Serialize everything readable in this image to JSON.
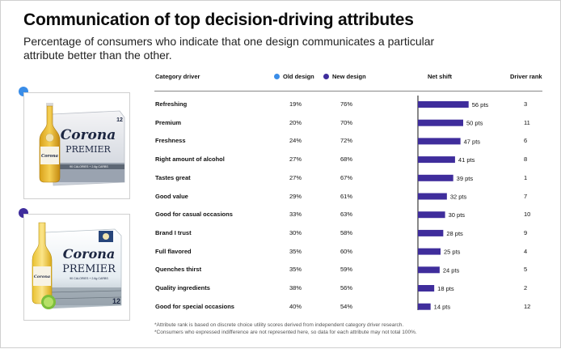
{
  "header": {
    "title": "Communication of top decision-driving attributes",
    "subtitle": "Percentage of consumers who indicate that one design communicates a particular attribute better than the other."
  },
  "columns": {
    "category": "Category driver",
    "old": "Old design",
    "new": "New design",
    "net": "Net shift",
    "rank": "Driver rank"
  },
  "colors": {
    "old": "#3a8de8",
    "new": "#3f2d9c",
    "bar": "#3f2d9c"
  },
  "packs": {
    "old": {
      "brand": "Corona",
      "sub": "PREMIER",
      "count": "12",
      "fineprint": "90 CALORIES + 2.6g CARBS"
    },
    "new": {
      "brand": "Corona",
      "sub": "PREMIER",
      "count": "12",
      "fineprint": "90 CALORIES + 2.6g CARBS"
    }
  },
  "chart_data": {
    "type": "bar",
    "title": "Communication of top decision-driving attributes",
    "xlabel": "Net shift",
    "ylabel": "Category driver",
    "unit": "pts",
    "categories": [
      "Refreshing",
      "Premium",
      "Freshness",
      "Right amount of alcohol",
      "Tastes great",
      "Good value",
      "Good for casual occasions",
      "Brand I trust",
      "Full flavored",
      "Quenches thirst",
      "Quality ingredients",
      "Good for special occasions"
    ],
    "values": [
      56,
      50,
      47,
      41,
      39,
      32,
      30,
      28,
      25,
      24,
      18,
      14
    ],
    "value_labels": [
      "56 pts",
      "50 pts",
      "47 pts",
      "41 pts",
      "39 pts",
      "32 pts",
      "30 pts",
      "28 pts",
      "25 pts",
      "24 pts",
      "18 pts",
      "14 pts"
    ],
    "old_design": [
      "19%",
      "20%",
      "24%",
      "27%",
      "27%",
      "29%",
      "33%",
      "30%",
      "35%",
      "35%",
      "38%",
      "40%"
    ],
    "new_design": [
      "76%",
      "70%",
      "72%",
      "68%",
      "67%",
      "61%",
      "63%",
      "58%",
      "60%",
      "59%",
      "56%",
      "54%"
    ],
    "driver_rank": [
      "3",
      "11",
      "6",
      "8",
      "1",
      "7",
      "10",
      "9",
      "4",
      "5",
      "2",
      "12"
    ],
    "xlim": [
      0,
      60
    ]
  },
  "footnotes": [
    "*Attribute rank is based on discrete choice utility scores derived from independent category driver research.",
    "*Consumers who expressed indifference are not represented here, so data for each attribute may not total 100%."
  ]
}
